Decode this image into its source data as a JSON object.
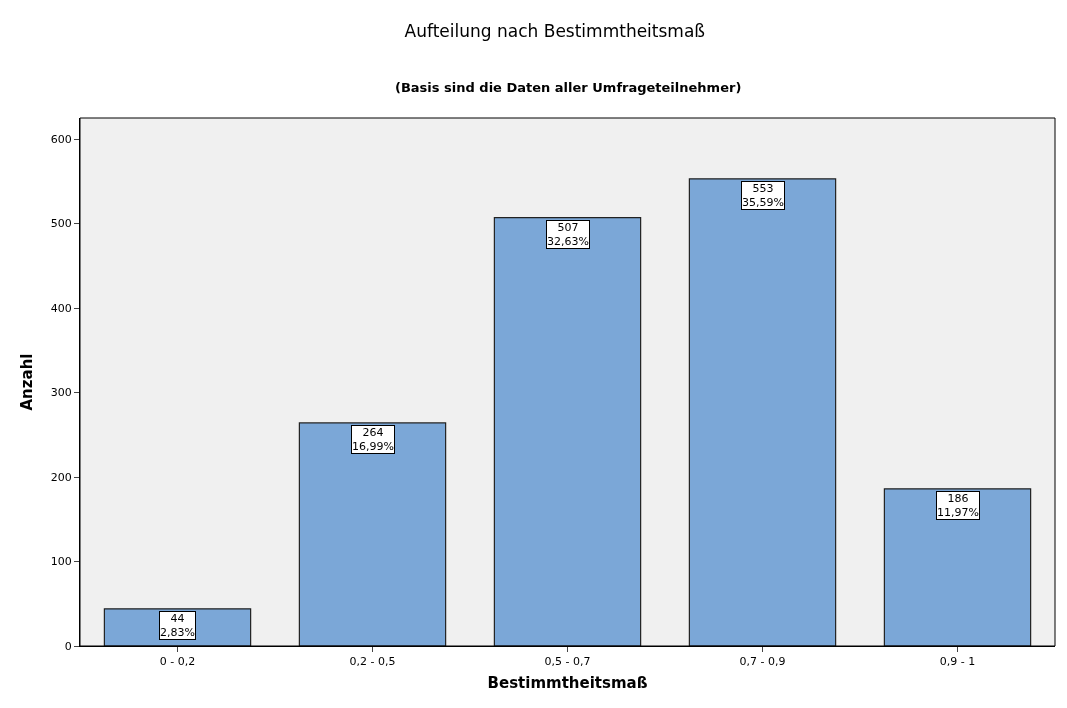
{
  "chart_data": {
    "type": "bar",
    "title": "Aufteilung nach Bestimmtheitsmaß",
    "subtitle": "(Basis sind die Daten aller Umfrageteilnehmer)",
    "xlabel": "Bestimmtheitsmaß",
    "ylabel": "Anzahl",
    "categories": [
      "0 - 0,2",
      "0,2 - 0,5",
      "0,5 - 0,7",
      "0,7 - 0,9",
      "0,9 - 1"
    ],
    "values": [
      44,
      264,
      507,
      553,
      186
    ],
    "value_labels": [
      "44\n2,83%",
      "264\n16,99%",
      "507\n32,63%",
      "553\n35,59%",
      "186\n11,97%"
    ],
    "color": "#7ba7d7",
    "ylim": [
      0,
      625
    ],
    "yticks": [
      0,
      100,
      200,
      300,
      400,
      500,
      600
    ],
    "grid": false
  }
}
